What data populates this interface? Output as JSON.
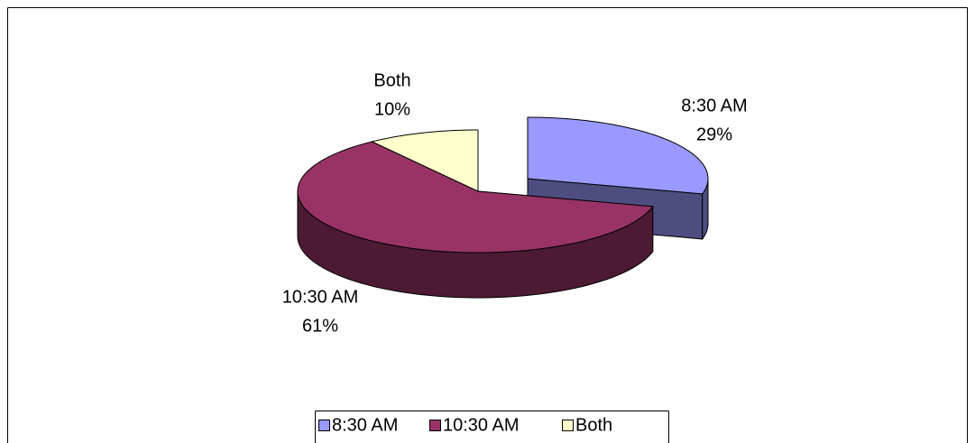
{
  "chart_data": {
    "type": "pie",
    "three_d": true,
    "categories": [
      "8:30 AM",
      "10:30 AM",
      "Both"
    ],
    "values": [
      29,
      61,
      10
    ],
    "value_labels": [
      "29%",
      "61%",
      "10%"
    ],
    "colors": [
      "#9999ff",
      "#993366",
      "#ffffcc"
    ],
    "legend": "bottom"
  }
}
